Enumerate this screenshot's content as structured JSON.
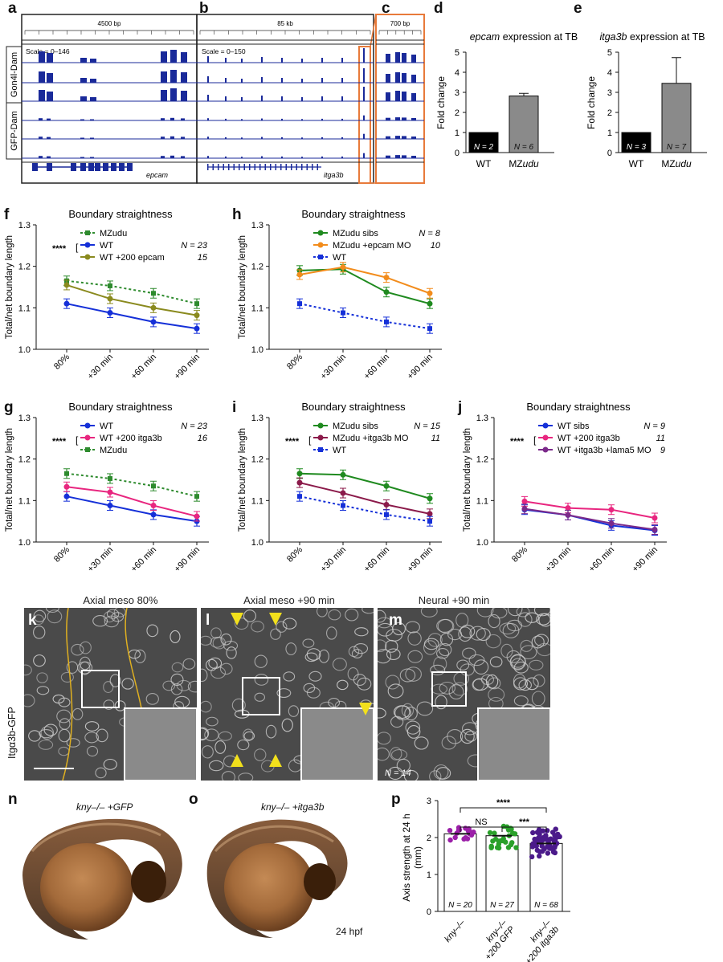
{
  "panels": {
    "a": "a",
    "b": "b",
    "c": "c",
    "d": "d",
    "e": "e",
    "f": "f",
    "g": "g",
    "h": "h",
    "i": "i",
    "j": "j",
    "k": "k",
    "l": "l",
    "m": "m",
    "n": "n",
    "o": "o",
    "p": "p"
  },
  "genome": {
    "scale_a": "4500 bp",
    "scale_b": "85 kb",
    "scale_c": "700 bp",
    "scale_text_a": "Scale = 0–146",
    "scale_text_b": "Scale = 0–150",
    "track_group_1": "Gon4l-Dam",
    "track_group_2": "GFP-Dam",
    "gene_a": "epcam",
    "gene_b": "itga3b"
  },
  "bar_d": {
    "title": "epcam expression at TB",
    "title_gene": "epcam",
    "title_rest": " expression at TB",
    "ylabel": "Fold change",
    "ticks": [
      "0",
      "1",
      "2",
      "3",
      "4",
      "5"
    ],
    "categories": [
      "WT",
      "MZudu"
    ],
    "cat2_prefix": "MZ",
    "cat2_gene": "udu",
    "n_labels": [
      "N = 2",
      "N = 6"
    ]
  },
  "bar_e": {
    "title": "itga3b expression at TB",
    "title_gene": "itga3b",
    "title_rest": " expression at TB",
    "ylabel": "Fold change",
    "ticks": [
      "0",
      "1",
      "2",
      "3",
      "4",
      "5"
    ],
    "categories": [
      "WT",
      "MZudu"
    ],
    "cat2_prefix": "MZ",
    "cat2_gene": "udu",
    "n_labels": [
      "N = 3",
      "N = 7"
    ]
  },
  "line_common": {
    "title": "Boundary straightness",
    "ylabel": "Total/net boundary length",
    "x_ticks": [
      "80%",
      "+30 min",
      "+60 min",
      "+90 min"
    ],
    "y_ticks": [
      "1.0",
      "1.1",
      "1.2",
      "1.3"
    ],
    "stars": "****"
  },
  "line_f": {
    "legend": [
      "MZudu",
      "WT",
      "WT +200 epcam"
    ],
    "n": [
      "",
      "N = 23",
      "15"
    ]
  },
  "line_g": {
    "legend": [
      "WT",
      "WT +200 itga3b",
      "MZudu"
    ],
    "n": [
      "N = 23",
      "16",
      ""
    ]
  },
  "line_h": {
    "legend": [
      "MZudu sibs",
      "MZudu +epcam MO",
      "WT"
    ],
    "n": [
      "N = 8",
      "10",
      ""
    ]
  },
  "line_i": {
    "legend": [
      "MZudu sibs",
      "MZudu +itga3b MO",
      "WT"
    ],
    "n": [
      "N = 15",
      "11",
      ""
    ]
  },
  "line_j": {
    "legend": [
      "WT sibs",
      "WT +200 itga3b",
      "WT +itga3b +lama5 MO"
    ],
    "n": [
      "N = 9",
      "11",
      "9"
    ]
  },
  "micro": {
    "title_k": "Axial meso 80%",
    "title_l": "Axial meso +90 min",
    "title_m": "Neural +90 min",
    "side_label": "Itgα3b-GFP",
    "n_m": "N = 14"
  },
  "embryo": {
    "caption_n": "kny–/– +GFP",
    "caption_o": "kny–/– +itga3b",
    "stage": "24 hpf"
  },
  "dot_p": {
    "ylabel": "Axis strength at 24 h (mm)",
    "ylabel_1": "Axis strength at 24 h",
    "ylabel_2": "(mm)",
    "ticks": [
      "0",
      "1",
      "2",
      "3"
    ],
    "categories": [
      "kny–/–",
      "kny–/– +200 GFP",
      "kny–/– +200 itga3b"
    ],
    "cat_line1": [
      "kny–/–",
      "kny–/–",
      "kny–/–"
    ],
    "cat_line2": [
      "",
      "+200 GFP",
      "+200 itga3b"
    ],
    "n_labels": [
      "N = 20",
      "N = 27",
      "N = 68"
    ],
    "sig": [
      "NS",
      "***",
      "****"
    ]
  },
  "chart_data": [
    {
      "panel": "d",
      "type": "bar",
      "categories": [
        "WT",
        "MZudu"
      ],
      "values": [
        1.0,
        2.82
      ],
      "errors": [
        0,
        0.13
      ],
      "ylim": [
        0,
        5
      ],
      "ylabel": "Fold change",
      "title": "epcam expression at TB"
    },
    {
      "panel": "e",
      "type": "bar",
      "categories": [
        "WT",
        "MZudu"
      ],
      "values": [
        1.0,
        3.45
      ],
      "errors": [
        0,
        1.28
      ],
      "ylim": [
        0,
        5
      ],
      "ylabel": "Fold change",
      "title": "itga3b expression at TB"
    },
    {
      "panel": "f",
      "type": "line",
      "title": "Boundary straightness",
      "ylabel": "Total/net boundary length",
      "categories": [
        "80%",
        "+30 min",
        "+60 min",
        "+90 min"
      ],
      "ylim": [
        1.0,
        1.3
      ],
      "series": [
        {
          "name": "MZudu",
          "values": [
            1.165,
            1.153,
            1.135,
            1.11
          ],
          "color": "#2e8b2e",
          "dash": true
        },
        {
          "name": "WT",
          "values": [
            1.11,
            1.088,
            1.066,
            1.05
          ],
          "color": "#1530d8",
          "dash": false
        },
        {
          "name": "WT +200 epcam",
          "values": [
            1.155,
            1.122,
            1.1,
            1.082
          ],
          "color": "#8a8a1e",
          "dash": false
        }
      ]
    },
    {
      "panel": "h",
      "type": "line",
      "title": "Boundary straightness",
      "ylabel": "Total/net boundary length",
      "categories": [
        "80%",
        "+30 min",
        "+60 min",
        "+90 min"
      ],
      "ylim": [
        1.0,
        1.3
      ],
      "series": [
        {
          "name": "MZudu sibs",
          "values": [
            1.19,
            1.193,
            1.138,
            1.11
          ],
          "color": "#1f8a1f",
          "dash": false
        },
        {
          "name": "MZudu +epcam MO",
          "values": [
            1.18,
            1.198,
            1.173,
            1.135
          ],
          "color": "#f28c1c",
          "dash": false
        },
        {
          "name": "WT",
          "values": [
            1.11,
            1.088,
            1.066,
            1.05
          ],
          "color": "#1530d8",
          "dash": true
        }
      ]
    },
    {
      "panel": "g",
      "type": "line",
      "title": "Boundary straightness",
      "ylabel": "Total/net boundary length",
      "categories": [
        "80%",
        "+30 min",
        "+60 min",
        "+90 min"
      ],
      "ylim": [
        1.0,
        1.3
      ],
      "series": [
        {
          "name": "WT",
          "values": [
            1.11,
            1.088,
            1.066,
            1.05
          ],
          "color": "#1530d8",
          "dash": false
        },
        {
          "name": "WT +200 itga3b",
          "values": [
            1.133,
            1.12,
            1.088,
            1.062
          ],
          "color": "#e8267f",
          "dash": false
        },
        {
          "name": "MZudu",
          "values": [
            1.165,
            1.153,
            1.135,
            1.11
          ],
          "color": "#2e8b2e",
          "dash": true
        }
      ]
    },
    {
      "panel": "i",
      "type": "line",
      "title": "Boundary straightness",
      "ylabel": "Total/net boundary length",
      "categories": [
        "80%",
        "+30 min",
        "+60 min",
        "+90 min"
      ],
      "ylim": [
        1.0,
        1.3
      ],
      "series": [
        {
          "name": "MZudu sibs",
          "values": [
            1.165,
            1.162,
            1.135,
            1.105
          ],
          "color": "#1f8a1f",
          "dash": false
        },
        {
          "name": "MZudu +itga3b MO",
          "values": [
            1.143,
            1.118,
            1.09,
            1.068
          ],
          "color": "#8b1a4a",
          "dash": false
        },
        {
          "name": "WT",
          "values": [
            1.11,
            1.088,
            1.066,
            1.05
          ],
          "color": "#1530d8",
          "dash": true
        }
      ]
    },
    {
      "panel": "j",
      "type": "line",
      "title": "Boundary straightness",
      "ylabel": "Total/net boundary length",
      "categories": [
        "80%",
        "+30 min",
        "+60 min",
        "+90 min"
      ],
      "ylim": [
        1.0,
        1.3
      ],
      "series": [
        {
          "name": "WT sibs",
          "values": [
            1.078,
            1.065,
            1.04,
            1.028
          ],
          "color": "#1530d8",
          "dash": false
        },
        {
          "name": "WT +200 itga3b",
          "values": [
            1.098,
            1.082,
            1.078,
            1.058
          ],
          "color": "#e8267f",
          "dash": false
        },
        {
          "name": "WT +itga3b +lama5 MO",
          "values": [
            1.08,
            1.065,
            1.045,
            1.03
          ],
          "color": "#7b2a8a",
          "dash": false
        }
      ]
    },
    {
      "panel": "p",
      "type": "scatter",
      "ylabel": "Axis strength at 24 h (mm)",
      "categories": [
        "kny–/–",
        "kny–/– +200 GFP",
        "kny–/– +200 itga3b"
      ],
      "values": [
        2.1,
        2.05,
        1.84
      ],
      "n": [
        20,
        27,
        68
      ],
      "ylim": [
        0,
        3
      ],
      "colors": [
        "#9b1fa8",
        "#2aa02a",
        "#4b1a8a"
      ]
    }
  ]
}
